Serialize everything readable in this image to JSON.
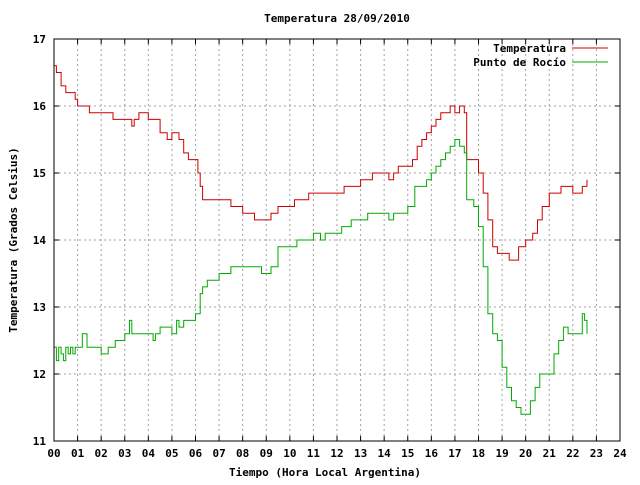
{
  "chart_data": {
    "type": "line",
    "title": "Temperatura 28/09/2010",
    "xlabel": "Tiempo (Hora Local Argentina)",
    "ylabel": "Temperatura (Grados Celsius)",
    "xlim": [
      0,
      24
    ],
    "ylim": [
      11,
      17
    ],
    "x_ticks": [
      "00",
      "01",
      "02",
      "03",
      "04",
      "05",
      "06",
      "07",
      "08",
      "09",
      "10",
      "11",
      "12",
      "13",
      "14",
      "15",
      "16",
      "17",
      "18",
      "19",
      "20",
      "21",
      "22",
      "23",
      "24"
    ],
    "y_ticks": [
      "11",
      "12",
      "13",
      "14",
      "15",
      "16",
      "17"
    ],
    "grid": true,
    "legend_position": "top-right",
    "series": [
      {
        "name": "Temperatura",
        "color": "#cc0000",
        "x": [
          0,
          0.1,
          0.3,
          0.5,
          0.7,
          0.9,
          1.0,
          1.2,
          1.5,
          2.0,
          2.4,
          2.5,
          3.0,
          3.2,
          3.3,
          3.4,
          3.5,
          3.6,
          3.8,
          4.0,
          4.2,
          4.5,
          4.8,
          5.0,
          5.2,
          5.3,
          5.5,
          5.7,
          6.0,
          6.1,
          6.2,
          6.3,
          6.5,
          7.0,
          7.5,
          7.8,
          8.0,
          8.3,
          8.5,
          8.7,
          9.0,
          9.2,
          9.5,
          9.8,
          10.0,
          10.2,
          10.5,
          10.8,
          11.0,
          11.3,
          11.5,
          12.0,
          12.3,
          12.5,
          12.8,
          13.0,
          13.3,
          13.5,
          14.0,
          14.2,
          14.4,
          14.6,
          14.8,
          15.0,
          15.2,
          15.4,
          15.6,
          15.8,
          16.0,
          16.2,
          16.4,
          16.6,
          16.8,
          17.0,
          17.2,
          17.4,
          17.5,
          17.8,
          18.0,
          18.2,
          18.4,
          18.6,
          18.8,
          19.0,
          19.3,
          19.5,
          19.7,
          19.9,
          20.0,
          20.3,
          20.5,
          20.7,
          21.0,
          21.3,
          21.5,
          21.7,
          22.0,
          22.2,
          22.4,
          22.6
        ],
        "y": [
          16.6,
          16.5,
          16.3,
          16.2,
          16.2,
          16.1,
          16.0,
          16.0,
          15.9,
          15.9,
          15.9,
          15.8,
          15.8,
          15.8,
          15.7,
          15.8,
          15.8,
          15.9,
          15.9,
          15.8,
          15.8,
          15.6,
          15.5,
          15.6,
          15.6,
          15.5,
          15.3,
          15.2,
          15.2,
          15.0,
          14.8,
          14.6,
          14.6,
          14.6,
          14.5,
          14.5,
          14.4,
          14.4,
          14.3,
          14.3,
          14.3,
          14.4,
          14.5,
          14.5,
          14.5,
          14.6,
          14.6,
          14.7,
          14.7,
          14.7,
          14.7,
          14.7,
          14.8,
          14.8,
          14.8,
          14.9,
          14.9,
          15.0,
          15.0,
          14.9,
          15.0,
          15.1,
          15.1,
          15.1,
          15.2,
          15.4,
          15.5,
          15.6,
          15.7,
          15.8,
          15.9,
          15.9,
          16.0,
          15.9,
          16.0,
          15.9,
          15.2,
          15.2,
          15.0,
          14.7,
          14.3,
          13.9,
          13.8,
          13.8,
          13.7,
          13.7,
          13.9,
          13.9,
          14.0,
          14.1,
          14.3,
          14.5,
          14.7,
          14.7,
          14.8,
          14.8,
          14.7,
          14.7,
          14.8,
          14.9
        ]
      },
      {
        "name": "Punto de Rocío",
        "color": "#00aa00",
        "x": [
          0,
          0.1,
          0.2,
          0.3,
          0.4,
          0.5,
          0.6,
          0.7,
          0.8,
          0.9,
          1.0,
          1.2,
          1.4,
          1.6,
          2.0,
          2.3,
          2.4,
          2.6,
          3.0,
          3.2,
          3.3,
          3.5,
          4.0,
          4.2,
          4.3,
          4.5,
          4.8,
          5.0,
          5.2,
          5.3,
          5.5,
          5.8,
          6.0,
          6.2,
          6.3,
          6.5,
          6.8,
          7.0,
          7.3,
          7.5,
          7.8,
          8.0,
          8.5,
          8.8,
          9.0,
          9.2,
          9.5,
          10.0,
          10.3,
          10.5,
          11.0,
          11.3,
          11.5,
          12.0,
          12.2,
          12.4,
          12.6,
          13.0,
          13.3,
          13.5,
          14.0,
          14.2,
          14.4,
          14.6,
          15.0,
          15.3,
          15.5,
          15.8,
          16.0,
          16.2,
          16.4,
          16.6,
          16.8,
          17.0,
          17.2,
          17.4,
          17.5,
          17.8,
          18.0,
          18.2,
          18.4,
          18.6,
          18.8,
          19.0,
          19.2,
          19.4,
          19.6,
          19.8,
          20.0,
          20.2,
          20.4,
          20.6,
          20.8,
          21.0,
          21.2,
          21.4,
          21.6,
          21.8,
          22.0,
          22.2,
          22.4,
          22.5,
          22.6
        ],
        "y": [
          12.4,
          12.2,
          12.4,
          12.3,
          12.2,
          12.4,
          12.3,
          12.4,
          12.3,
          12.4,
          12.4,
          12.6,
          12.4,
          12.4,
          12.3,
          12.4,
          12.4,
          12.5,
          12.6,
          12.8,
          12.6,
          12.6,
          12.6,
          12.5,
          12.6,
          12.7,
          12.7,
          12.6,
          12.8,
          12.7,
          12.8,
          12.8,
          12.9,
          13.2,
          13.3,
          13.4,
          13.4,
          13.5,
          13.5,
          13.6,
          13.6,
          13.6,
          13.6,
          13.5,
          13.5,
          13.6,
          13.9,
          13.9,
          14.0,
          14.0,
          14.1,
          14.0,
          14.1,
          14.1,
          14.2,
          14.2,
          14.3,
          14.3,
          14.4,
          14.4,
          14.4,
          14.3,
          14.4,
          14.4,
          14.5,
          14.8,
          14.8,
          14.9,
          15.0,
          15.1,
          15.2,
          15.3,
          15.4,
          15.5,
          15.4,
          15.3,
          14.6,
          14.5,
          14.2,
          13.6,
          12.9,
          12.6,
          12.5,
          12.1,
          11.8,
          11.6,
          11.5,
          11.4,
          11.4,
          11.6,
          11.8,
          12.0,
          12.0,
          12.0,
          12.3,
          12.5,
          12.7,
          12.6,
          12.6,
          12.6,
          12.9,
          12.8,
          12.6
        ]
      }
    ]
  }
}
